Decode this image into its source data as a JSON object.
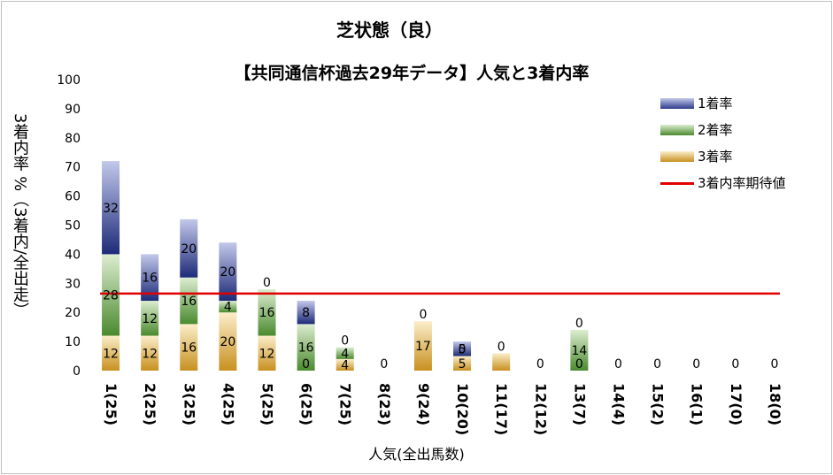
{
  "chart_data": {
    "type": "bar",
    "stacked": true,
    "title": "芝状態（良）",
    "subtitle": "【共同通信杯過去29年データ】人気と3着内率",
    "xlabel": "人気(全出馬数)",
    "ylabel": "3着内率 %（3着内/全出走）",
    "ylim": [
      0,
      100
    ],
    "yticks": [
      0,
      10,
      20,
      30,
      40,
      50,
      60,
      70,
      80,
      90,
      100
    ],
    "grid": false,
    "legend_position": "top-right",
    "categories": [
      "1(25)",
      "2(25)",
      "3(25)",
      "4(25)",
      "5(25)",
      "6(25)",
      "7(25)",
      "8(23)",
      "9(24)",
      "10(20)",
      "11(17)",
      "12(12)",
      "13(7)",
      "14(4)",
      "15(2)",
      "16(1)",
      "17(0)",
      "18(0)"
    ],
    "series": [
      {
        "name": "3着率",
        "color": "#d9a13a",
        "values": [
          12,
          12,
          16,
          20,
          12,
          0,
          4,
          0,
          17,
          5,
          6,
          0,
          0,
          0,
          0,
          0,
          0,
          0
        ]
      },
      {
        "name": "2着率",
        "color": "#5b9a3c",
        "values": [
          28,
          12,
          16,
          4,
          16,
          16,
          4,
          0,
          0,
          0,
          0,
          0,
          14,
          0,
          0,
          0,
          0,
          0
        ]
      },
      {
        "name": "1着率",
        "color": "#2e3b8c",
        "values": [
          32,
          16,
          20,
          20,
          0,
          8,
          0,
          0,
          0,
          5,
          0,
          0,
          0,
          0,
          0,
          0,
          0,
          0
        ]
      }
    ],
    "data_labels": {
      "3着率": [
        "12",
        "12",
        "16",
        "20",
        "12",
        "0",
        "4",
        "",
        "17",
        "5",
        "",
        "",
        "0",
        "0",
        "0",
        "0",
        "0",
        "0"
      ],
      "2着率": [
        "28",
        "12",
        "16",
        "4",
        "16",
        "16",
        "4",
        "",
        "",
        "0",
        "",
        "",
        "14",
        "",
        "",
        "",
        "",
        ""
      ],
      "1着率": [
        "32",
        "16",
        "20",
        "20",
        "0",
        "8",
        "0",
        "0",
        "0",
        "5",
        "0",
        "0",
        "0",
        "",
        "",
        "",
        "",
        ""
      ]
    },
    "reference_line": {
      "name": "3着内率期待値",
      "value": 26.5,
      "color": "#e00000"
    }
  }
}
